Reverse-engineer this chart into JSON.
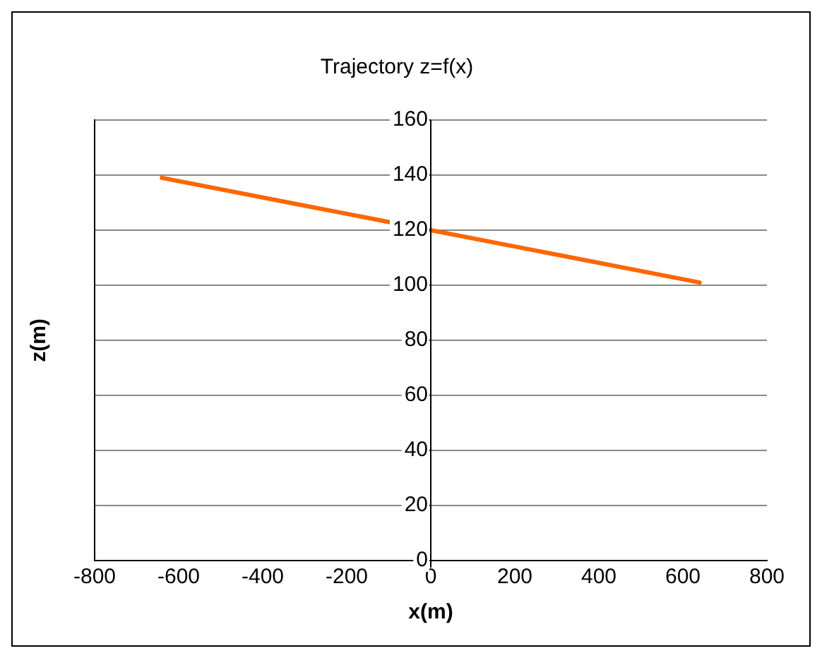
{
  "chart_data": {
    "type": "line",
    "title": "Trajectory z=f(x)",
    "xlabel": "x(m)",
    "ylabel": "z(m)",
    "x": [
      -640,
      -320,
      0,
      320,
      640
    ],
    "series": [
      {
        "color": "#ff6600",
        "values": [
          139,
          129.5,
          120,
          110.5,
          101
        ]
      }
    ],
    "xlim": [
      -800,
      800
    ],
    "xticks": [
      -800,
      -600,
      -400,
      -200,
      0,
      200,
      400,
      600,
      800
    ],
    "ylim": [
      0,
      160
    ],
    "yticks": [
      0,
      20,
      40,
      60,
      80,
      100,
      120,
      140,
      160
    ],
    "grid": "y",
    "legend": false,
    "marker": "none",
    "line_style": "solid"
  }
}
